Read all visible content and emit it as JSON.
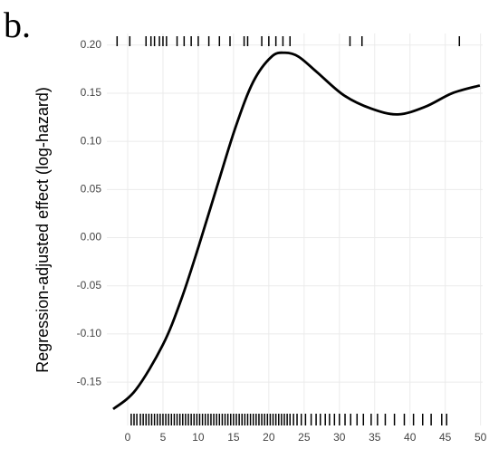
{
  "chart_data": {
    "type": "line",
    "panel_label": "b.",
    "y_label": "Regression-adjusted effect (log-hazard)",
    "x": [
      -2.05,
      1.15,
      5,
      7.6,
      10.1,
      12.7,
      15.3,
      17.8,
      20.4,
      22.3,
      24.2,
      26.8,
      30.6,
      34.5,
      38.3,
      42.2,
      46,
      49.9
    ],
    "series": [
      {
        "color": "#000000",
        "values": [
          -0.178,
          -0.158,
          -0.111,
          -0.064,
          -0.008,
          0.054,
          0.115,
          0.162,
          0.188,
          0.192,
          0.188,
          0.172,
          0.148,
          0.134,
          0.128,
          0.136,
          0.15,
          0.158
        ]
      }
    ],
    "rug_top": [
      -1.5,
      0.3,
      2.6,
      3.3,
      3.8,
      4.5,
      5,
      5.5,
      7,
      8,
      9,
      10,
      11.5,
      13,
      14.5,
      16.5,
      17,
      19,
      20,
      21,
      22,
      23,
      31.5,
      33.2,
      47
    ],
    "rug_bottom": [
      0.5,
      0.9,
      1.3,
      1.8,
      2.2,
      2.6,
      3,
      3.4,
      3.8,
      4.2,
      4.6,
      5,
      5.4,
      5.8,
      6.2,
      6.6,
      7,
      7.4,
      7.8,
      8.2,
      8.6,
      9,
      9.4,
      9.8,
      10.2,
      10.6,
      11,
      11.4,
      11.8,
      12.2,
      12.6,
      13,
      13.4,
      13.8,
      14.2,
      14.6,
      15,
      15.4,
      15.8,
      16.2,
      16.6,
      17,
      17.4,
      17.8,
      18.2,
      18.6,
      19,
      19.4,
      19.8,
      20.2,
      20.6,
      21,
      21.4,
      21.8,
      22.2,
      22.6,
      23,
      23.5,
      24,
      24.6,
      25.2,
      26,
      26.7,
      27.3,
      28,
      28.6,
      29.3,
      30,
      30.8,
      31.6,
      32.5,
      33.4,
      34.5,
      35.4,
      36.5,
      37.8,
      39.2,
      40.5,
      41.8,
      43,
      44.5,
      45.2
    ],
    "xlim": [
      -2.95,
      50.3
    ],
    "ylim": [
      -0.195,
      0.212
    ],
    "xticks": [
      0,
      5,
      10,
      15,
      20,
      25,
      30,
      35,
      40,
      45,
      50
    ],
    "yticks": [
      {
        "value": 0.2,
        "label": "0.20"
      },
      {
        "value": 0.15,
        "label": "0.15"
      },
      {
        "value": 0.1,
        "label": "0.10"
      },
      {
        "value": 0.05,
        "label": "0.05"
      },
      {
        "value": 0,
        "label": "0.00"
      },
      {
        "value": -0.05,
        "label": "-0.05"
      },
      {
        "value": -0.1,
        "label": "-0.10"
      },
      {
        "value": -0.15,
        "label": "-0.15"
      }
    ],
    "grid": true
  }
}
